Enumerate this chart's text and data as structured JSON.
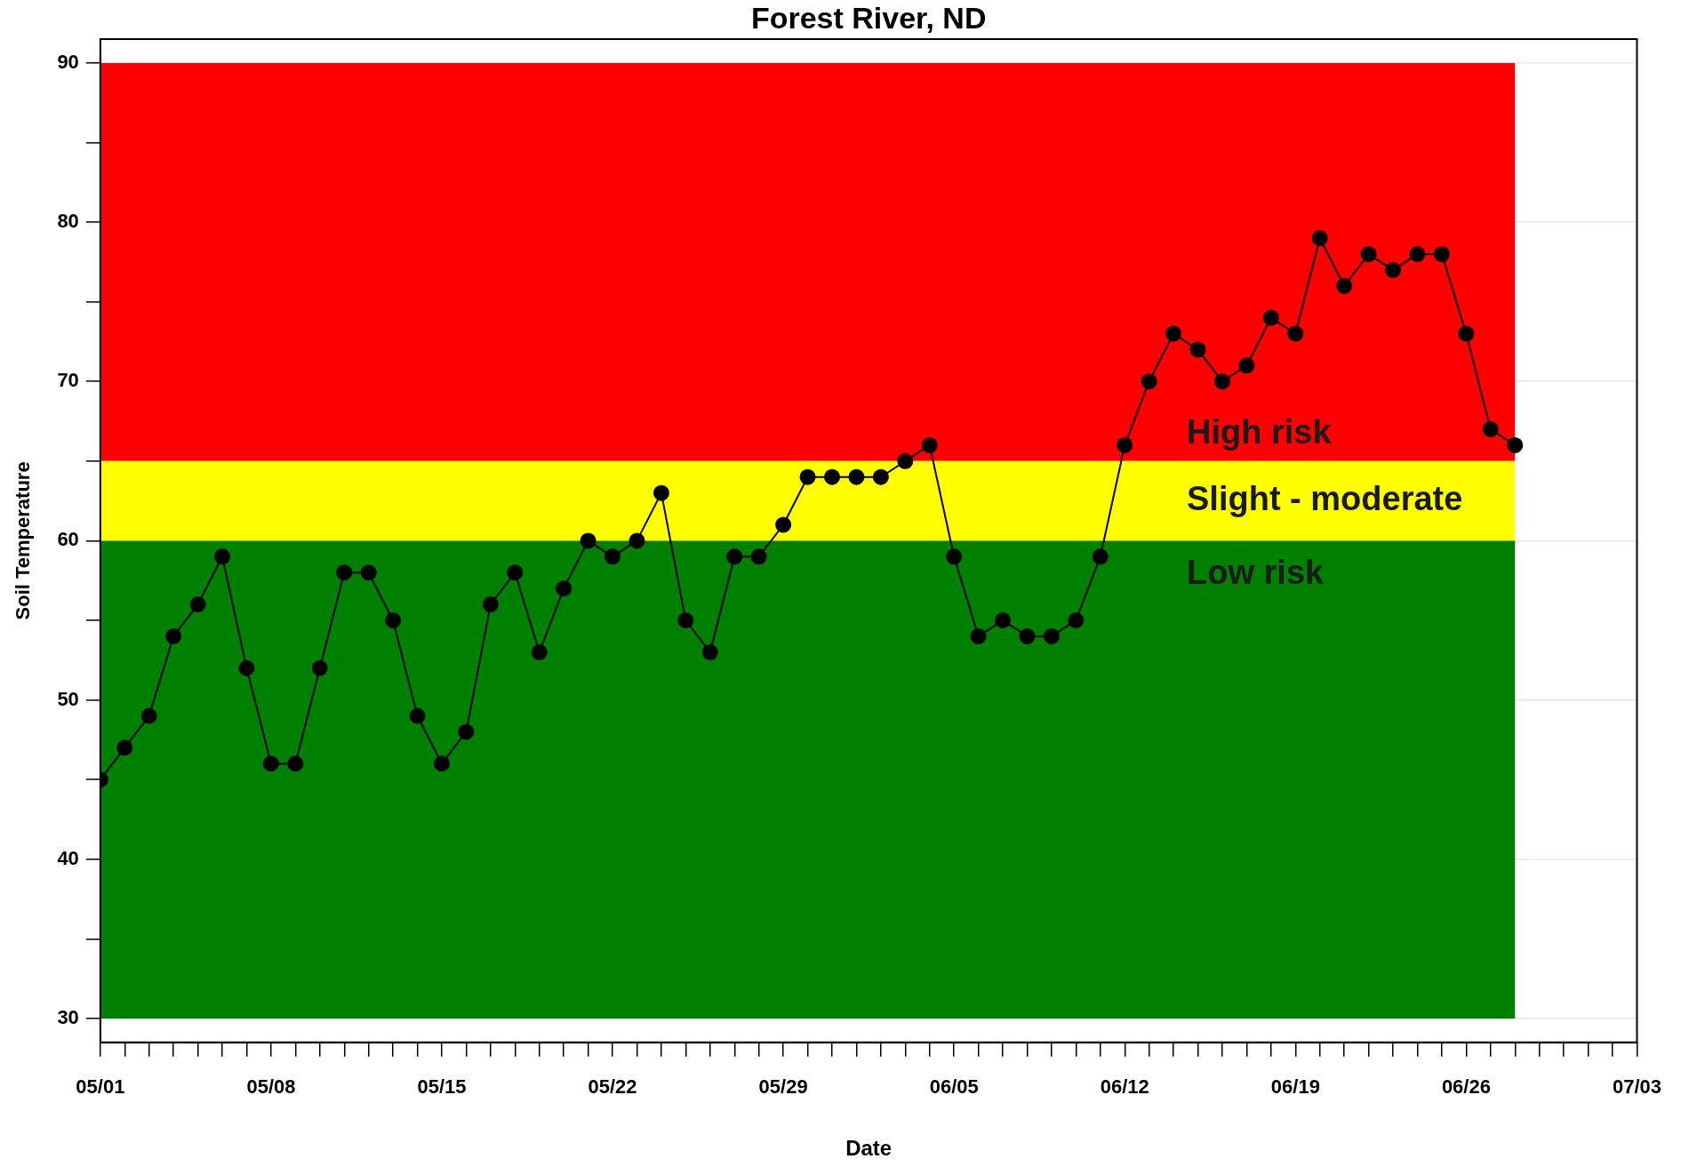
{
  "chart_data": {
    "type": "line",
    "title": "Forest River, ND",
    "xlabel": "Date",
    "ylabel": "Soil Temperature",
    "x": [
      "--05-01",
      "--05-02",
      "--05-03",
      "--05-04",
      "--05-05",
      "--05-06",
      "--05-07",
      "--05-08",
      "--05-09",
      "--05-10",
      "--05-11",
      "--05-12",
      "--05-13",
      "--05-14",
      "--05-15",
      "--05-16",
      "--05-17",
      "--05-18",
      "--05-19",
      "--05-20",
      "--05-21",
      "--05-22",
      "--05-23",
      "--05-24",
      "--05-25",
      "--05-26",
      "--05-27",
      "--05-28",
      "--05-29",
      "--05-30",
      "--05-31",
      "--06-01",
      "--06-02",
      "--06-03",
      "--06-04",
      "--06-05",
      "--06-06",
      "--06-07",
      "--06-08",
      "--06-09",
      "--06-10",
      "--06-11",
      "--06-12",
      "--06-13",
      "--06-14",
      "--06-15",
      "--06-16",
      "--06-17",
      "--06-18",
      "--06-19",
      "--06-20",
      "--06-21",
      "--06-22",
      "--06-23",
      "--06-24",
      "--06-25",
      "--06-26",
      "--06-27",
      "--06-28"
    ],
    "series": [
      {
        "color": "#000000",
        "values": [
          45,
          47,
          49,
          54,
          56,
          59,
          52,
          46,
          46,
          52,
          58,
          58,
          55,
          49,
          46,
          48,
          56,
          58,
          53,
          57,
          60,
          59,
          60,
          63,
          55,
          53,
          59,
          59,
          61,
          64,
          64,
          64,
          64,
          65,
          66,
          59,
          54,
          55,
          54,
          54,
          55,
          59,
          66,
          70,
          73,
          72,
          70,
          71,
          74,
          73,
          79,
          76,
          78,
          77,
          78,
          78,
          73,
          67,
          66
        ]
      }
    ],
    "xlim": [
      "--05-01",
      "--07-03"
    ],
    "xticks": [
      {
        "value": "--05-01",
        "label": "05/01"
      },
      {
        "value": "--05-02",
        "label": null
      },
      {
        "value": "--05-03",
        "label": null
      },
      {
        "value": "--05-04",
        "label": null
      },
      {
        "value": "--05-05",
        "label": null
      },
      {
        "value": "--05-06",
        "label": null
      },
      {
        "value": "--05-07",
        "label": null
      },
      {
        "value": "--05-08",
        "label": "05/08"
      },
      {
        "value": "--05-09",
        "label": null
      },
      {
        "value": "--05-10",
        "label": null
      },
      {
        "value": "--05-11",
        "label": null
      },
      {
        "value": "--05-12",
        "label": null
      },
      {
        "value": "--05-13",
        "label": null
      },
      {
        "value": "--05-14",
        "label": null
      },
      {
        "value": "--05-15",
        "label": "05/15"
      },
      {
        "value": "--05-16",
        "label": null
      },
      {
        "value": "--05-17",
        "label": null
      },
      {
        "value": "--05-18",
        "label": null
      },
      {
        "value": "--05-19",
        "label": null
      },
      {
        "value": "--05-20",
        "label": null
      },
      {
        "value": "--05-21",
        "label": null
      },
      {
        "value": "--05-22",
        "label": "05/22"
      },
      {
        "value": "--05-23",
        "label": null
      },
      {
        "value": "--05-24",
        "label": null
      },
      {
        "value": "--05-25",
        "label": null
      },
      {
        "value": "--05-26",
        "label": null
      },
      {
        "value": "--05-27",
        "label": null
      },
      {
        "value": "--05-28",
        "label": null
      },
      {
        "value": "--05-29",
        "label": "05/29"
      },
      {
        "value": "--05-30",
        "label": null
      },
      {
        "value": "--05-31",
        "label": null
      },
      {
        "value": "--06-01",
        "label": null
      },
      {
        "value": "--06-02",
        "label": null
      },
      {
        "value": "--06-03",
        "label": null
      },
      {
        "value": "--06-04",
        "label": null
      },
      {
        "value": "--06-05",
        "label": "06/05"
      },
      {
        "value": "--06-06",
        "label": null
      },
      {
        "value": "--06-07",
        "label": null
      },
      {
        "value": "--06-08",
        "label": null
      },
      {
        "value": "--06-09",
        "label": null
      },
      {
        "value": "--06-10",
        "label": null
      },
      {
        "value": "--06-11",
        "label": null
      },
      {
        "value": "--06-12",
        "label": "06/12"
      },
      {
        "value": "--06-13",
        "label": null
      },
      {
        "value": "--06-14",
        "label": null
      },
      {
        "value": "--06-15",
        "label": null
      },
      {
        "value": "--06-16",
        "label": null
      },
      {
        "value": "--06-17",
        "label": null
      },
      {
        "value": "--06-18",
        "label": null
      },
      {
        "value": "--06-19",
        "label": "06/19"
      },
      {
        "value": "--06-20",
        "label": null
      },
      {
        "value": "--06-21",
        "label": null
      },
      {
        "value": "--06-22",
        "label": null
      },
      {
        "value": "--06-23",
        "label": null
      },
      {
        "value": "--06-24",
        "label": null
      },
      {
        "value": "--06-25",
        "label": null
      },
      {
        "value": "--06-26",
        "label": "06/26"
      },
      {
        "value": "--06-27",
        "label": null
      },
      {
        "value": "--06-28",
        "label": null
      },
      {
        "value": "--06-29",
        "label": null
      },
      {
        "value": "--06-30",
        "label": null
      },
      {
        "value": "--07-01",
        "label": null
      },
      {
        "value": "--07-02",
        "label": null
      },
      {
        "value": "--07-03",
        "label": "07/03"
      }
    ],
    "ylim": [
      28.5,
      91.5
    ],
    "yticks": [
      30,
      {
        "value": 35,
        "label": null
      },
      40,
      {
        "value": 45,
        "label": null
      },
      50,
      {
        "value": 55,
        "label": null
      },
      60,
      {
        "value": 65,
        "label": null
      },
      70,
      {
        "value": 75,
        "label": null
      },
      80,
      {
        "value": 85,
        "label": null
      },
      90
    ],
    "bands": [
      {
        "axis": "y",
        "from": 65,
        "to": 90,
        "label": "High risk",
        "color": "#ff0000"
      },
      {
        "axis": "y",
        "from": 60,
        "to": 65,
        "label": "Slight - moderate",
        "color": "#ffff00"
      },
      {
        "axis": "y",
        "from": 30,
        "to": 60,
        "label": "Low risk",
        "color": "#008000"
      }
    ],
    "grid": "y",
    "marker": "circle",
    "line_style": "solid"
  }
}
